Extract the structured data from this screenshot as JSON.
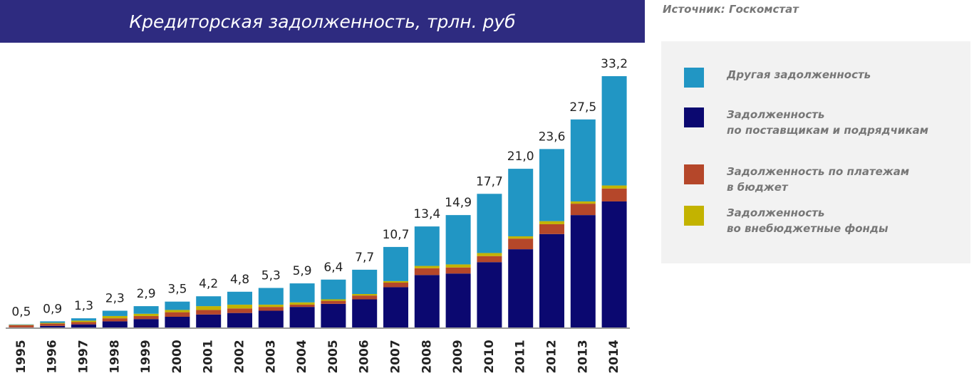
{
  "chart_data": {
    "type": "stacked_bar",
    "title": "Кредиторская задолженность, трлн. руб",
    "source": "Источник: Госкомстат",
    "categories": [
      "1995",
      "1996",
      "1997",
      "1998",
      "1999",
      "2000",
      "2001",
      "2002",
      "2003",
      "2004",
      "2005",
      "2006",
      "2007",
      "2008",
      "2009",
      "2010",
      "2011",
      "2012",
      "2013",
      "2014"
    ],
    "series": [
      {
        "name": "Задолженность\nпо поставщикам и подрядчикам",
        "color": "#0b0870",
        "values": [
          0.1,
          0.3,
          0.5,
          0.9,
          1.2,
          1.5,
          1.8,
          2.0,
          2.3,
          2.8,
          3.2,
          3.8,
          5.4,
          7.0,
          7.2,
          8.7,
          10.4,
          12.4,
          14.9,
          16.7
        ]
      },
      {
        "name": "Задолженность по платежам\nв бюджет",
        "color": "#b5472a",
        "values": [
          0.3,
          0.3,
          0.3,
          0.4,
          0.4,
          0.6,
          0.6,
          0.6,
          0.5,
          0.3,
          0.4,
          0.5,
          0.6,
          0.9,
          0.8,
          0.8,
          1.4,
          1.3,
          1.5,
          1.7
        ]
      },
      {
        "name": "Задолженность\nво внебюджетные фонды",
        "color": "#c3b300",
        "values": [
          0.05,
          0.1,
          0.2,
          0.3,
          0.3,
          0.3,
          0.5,
          0.5,
          0.3,
          0.3,
          0.2,
          0.2,
          0.2,
          0.3,
          0.4,
          0.4,
          0.3,
          0.4,
          0.3,
          0.4
        ]
      },
      {
        "name": "Другая задолженность",
        "color": "#2196c4",
        "values": [
          0.05,
          0.2,
          0.3,
          0.7,
          1.0,
          1.1,
          1.3,
          1.7,
          2.2,
          2.5,
          2.6,
          3.2,
          4.5,
          5.2,
          6.5,
          7.8,
          8.9,
          9.5,
          10.8,
          14.4
        ]
      }
    ],
    "totals": [
      0.5,
      0.9,
      1.3,
      2.3,
      2.9,
      3.5,
      4.2,
      4.8,
      5.3,
      5.9,
      6.4,
      7.7,
      10.7,
      13.4,
      14.9,
      17.7,
      21.0,
      23.6,
      27.5,
      33.2
    ],
    "total_labels": [
      "0,5",
      "0,9",
      "1,3",
      "2,3",
      "2,9",
      "3,5",
      "4,2",
      "4,8",
      "5,3",
      "5,9",
      "6,4",
      "7,7",
      "10,7",
      "13,4",
      "14,9",
      "17,7",
      "21,0",
      "23,6",
      "27,5",
      "33,2"
    ],
    "legend_order": [
      3,
      0,
      1,
      2
    ]
  }
}
